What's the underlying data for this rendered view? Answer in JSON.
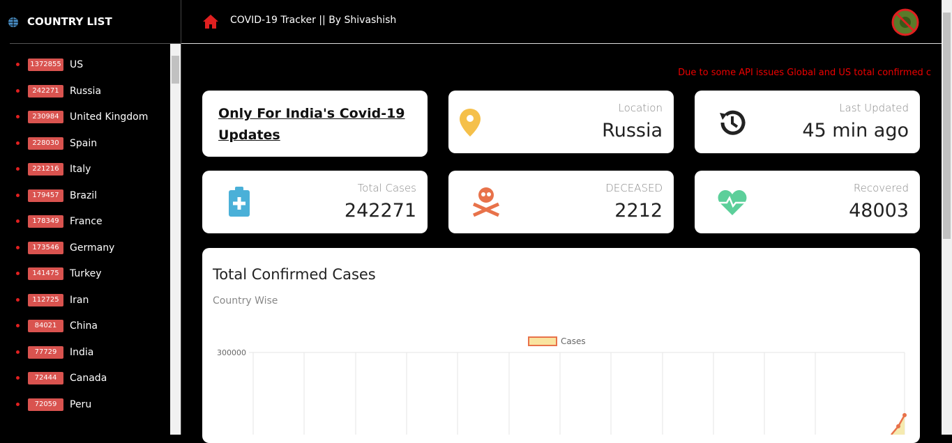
{
  "sidebar": {
    "title": "COUNTRY LIST",
    "countries": [
      {
        "count": 1372855,
        "name": "US"
      },
      {
        "count": 242271,
        "name": "Russia"
      },
      {
        "count": 230984,
        "name": "United Kingdom"
      },
      {
        "count": 228030,
        "name": "Spain"
      },
      {
        "count": 221216,
        "name": "Italy"
      },
      {
        "count": 179457,
        "name": "Brazil"
      },
      {
        "count": 178349,
        "name": "France"
      },
      {
        "count": 173546,
        "name": "Germany"
      },
      {
        "count": 141475,
        "name": "Turkey"
      },
      {
        "count": 112725,
        "name": "Iran"
      },
      {
        "count": 84021,
        "name": "China"
      },
      {
        "count": 77729,
        "name": "India"
      },
      {
        "count": 72444,
        "name": "Canada"
      },
      {
        "count": 72059,
        "name": "Peru"
      }
    ]
  },
  "header": {
    "title": "COVID-19 Tracker || By Shivashish"
  },
  "notice": "Due to some API issues Global and US total confirmed c",
  "cards": {
    "india_link": "Only For India's Covid-19 Updates",
    "location": {
      "label": "Location",
      "value": "Russia"
    },
    "last_updated": {
      "label": "Last Updated",
      "value": "45 min ago"
    },
    "total_cases": {
      "label": "Total Cases",
      "value": 242271
    },
    "deceased": {
      "label": "DECEASED",
      "value": 2212
    },
    "recovered": {
      "label": "Recovered",
      "value": 48003
    }
  },
  "chart": {
    "title": "Total Confirmed Cases",
    "subtitle": "Country Wise",
    "legend": "Cases",
    "y_tick": "300000"
  }
}
